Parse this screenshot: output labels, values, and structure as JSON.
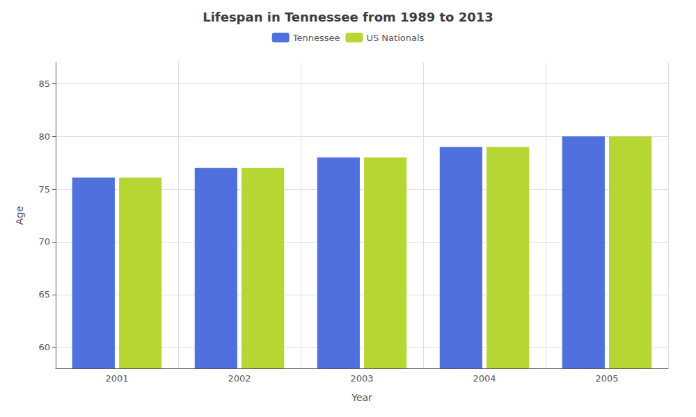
{
  "chart_data": {
    "type": "bar",
    "title": "Lifespan in Tennessee from 1989 to 2013",
    "xlabel": "Year",
    "ylabel": "Age",
    "categories": [
      "2001",
      "2002",
      "2003",
      "2004",
      "2005"
    ],
    "series": [
      {
        "name": "Tennessee",
        "values": [
          76.1,
          77.0,
          78.0,
          79.0,
          80.0
        ]
      },
      {
        "name": "US Nationals",
        "values": [
          76.1,
          77.0,
          78.0,
          79.0,
          80.0
        ]
      }
    ],
    "ylim": [
      58,
      87
    ],
    "yticks": [
      60,
      65,
      70,
      75,
      80,
      85
    ],
    "grid": true,
    "legend": "top"
  }
}
